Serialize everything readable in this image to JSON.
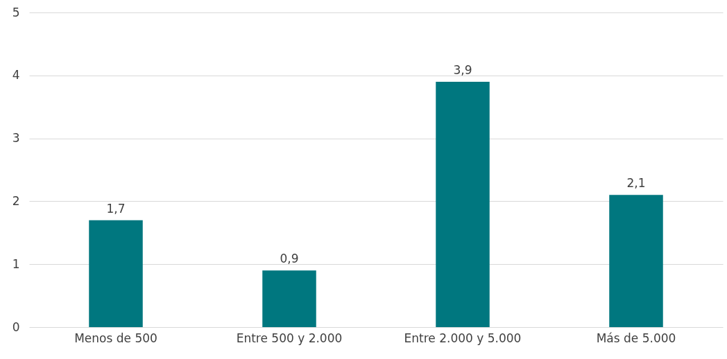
{
  "chart_data": {
    "type": "bar",
    "categories": [
      "Menos de 500",
      "Entre 500 y 2.000",
      "Entre 2.000 y 5.000",
      "Más de 5.000"
    ],
    "values": [
      1.7,
      0.9,
      3.9,
      2.1
    ],
    "value_labels": [
      "1,7",
      "0,9",
      "3,9",
      "2,1"
    ],
    "color": "#00777f",
    "ylim": [
      0,
      5
    ],
    "yticks": [
      0,
      1,
      2,
      3,
      4,
      5
    ],
    "grid": "y"
  }
}
